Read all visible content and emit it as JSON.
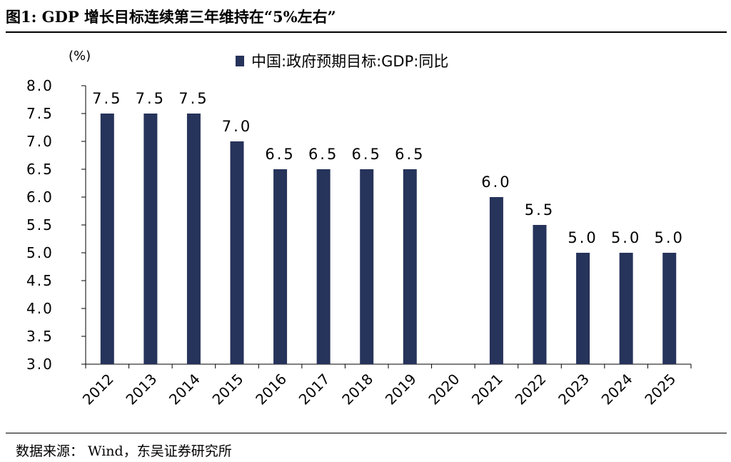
{
  "figure": {
    "title": "图1:  GDP 增长目标连续第三年维持在“5%左右”",
    "source": "数据来源：  Wind，东吴证券研究所"
  },
  "chart_data": {
    "type": "bar",
    "categories": [
      "2012",
      "2013",
      "2014",
      "2015",
      "2016",
      "2017",
      "2018",
      "2019",
      "2020",
      "2021",
      "2022",
      "2023",
      "2024",
      "2025"
    ],
    "series": [
      {
        "name": "中国:政府预期目标:GDP:同比",
        "values": [
          7.5,
          7.5,
          7.5,
          7.0,
          6.5,
          6.5,
          6.5,
          6.5,
          null,
          6.0,
          5.5,
          5.0,
          5.0,
          5.0
        ],
        "labels": [
          "7.5",
          "7.5",
          "7.5",
          "7.0",
          "6.5",
          "6.5",
          "6.5",
          "6.5",
          "",
          "6.0",
          "5.5",
          "5.0",
          "5.0",
          "5.0"
        ]
      }
    ],
    "ylabel": "(%)",
    "ylim": [
      3.0,
      8.0
    ],
    "yticks": [
      "3.0",
      "3.5",
      "4.0",
      "4.5",
      "5.0",
      "5.5",
      "6.0",
      "6.5",
      "7.0",
      "7.5",
      "8.0"
    ],
    "grid": false,
    "legend_position": "top",
    "colors": {
      "bar": "#26335a",
      "axis": "#000000"
    }
  }
}
